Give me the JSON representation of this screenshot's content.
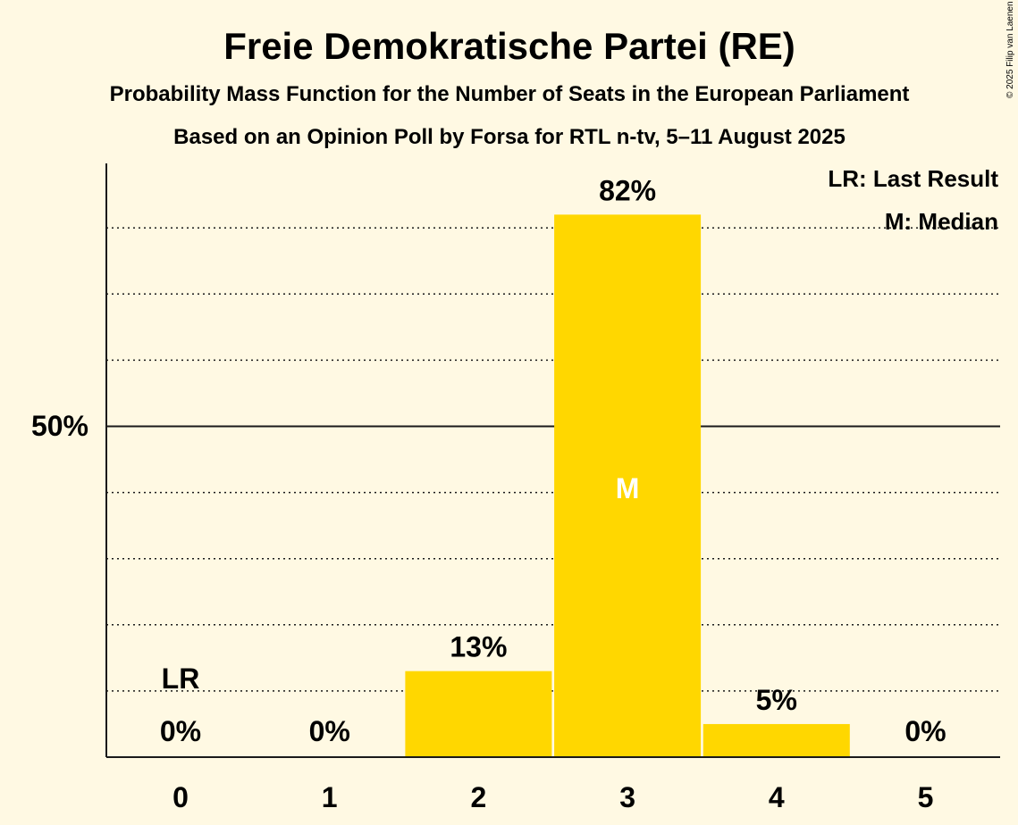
{
  "chart_data": {
    "type": "bar",
    "title": "Freie Demokratische Partei (RE)",
    "subtitle": "Probability Mass Function for the Number of Seats in the European Parliament",
    "subtitle2": "Based on an Opinion Poll by Forsa for RTL n-tv, 5–11 August 2025",
    "copyright": "© 2025 Filip van Laenen",
    "categories": [
      "0",
      "1",
      "2",
      "3",
      "4",
      "5"
    ],
    "values": [
      0,
      0,
      13,
      82,
      5,
      0
    ],
    "value_labels": [
      "0%",
      "0%",
      "13%",
      "82%",
      "5%",
      "0%"
    ],
    "ylim": [
      0,
      90
    ],
    "y_tick_label": "50%",
    "y_tick_value": 50,
    "gridlines": [
      10,
      20,
      30,
      40,
      60,
      70,
      80
    ],
    "last_result_index": 0,
    "last_result_marker": "LR",
    "median_index": 3,
    "median_marker": "M",
    "legend": [
      "LR: Last Result",
      "M: Median"
    ],
    "legend_position": "top-right",
    "bar_color": "#ffd700",
    "background": "#fff9e3"
  }
}
